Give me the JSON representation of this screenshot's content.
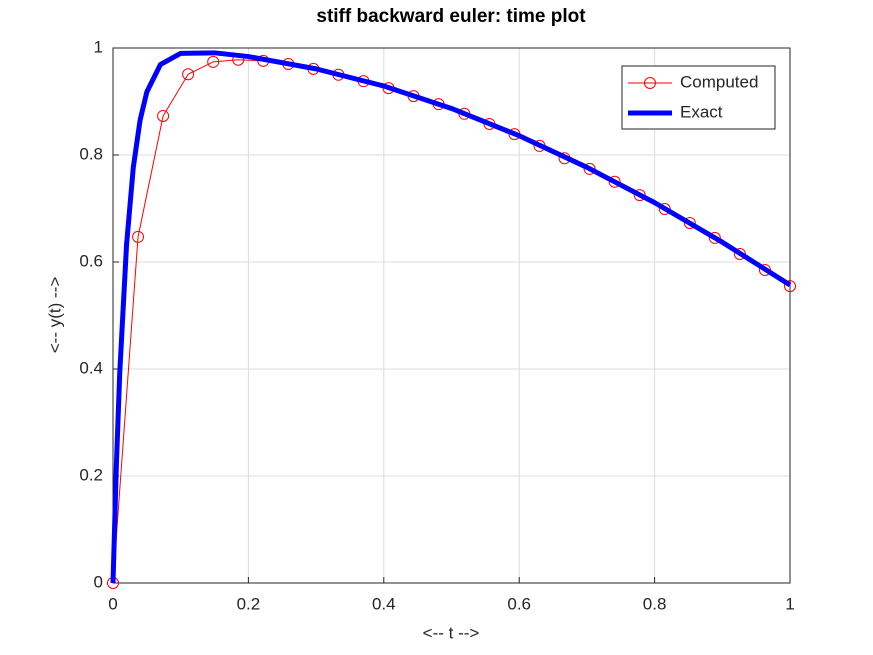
{
  "chart_data": {
    "type": "line",
    "title": "stiff backward euler: time plot",
    "x_label": "<-- t -->",
    "y_label": "<-- y(t) -->",
    "xlim": [
      0,
      1
    ],
    "ylim": [
      0,
      1
    ],
    "xticks": [
      0,
      0.2,
      0.4,
      0.6,
      0.8,
      1
    ],
    "yticks": [
      0,
      0.2,
      0.4,
      0.6,
      0.8,
      1
    ],
    "grid": true,
    "legend_position": "top-right",
    "series": [
      {
        "name": "Computed",
        "color": "#ff0000",
        "marker": "circle",
        "line_width": 1,
        "x": [
          0,
          0.037,
          0.074,
          0.111,
          0.148,
          0.185,
          0.222,
          0.259,
          0.296,
          0.333,
          0.37,
          0.407,
          0.444,
          0.481,
          0.519,
          0.556,
          0.593,
          0.63,
          0.667,
          0.704,
          0.741,
          0.778,
          0.815,
          0.852,
          0.889,
          0.926,
          0.963,
          1
        ],
        "values": [
          0,
          0.647,
          0.873,
          0.951,
          0.974,
          0.978,
          0.976,
          0.97,
          0.961,
          0.95,
          0.938,
          0.925,
          0.91,
          0.895,
          0.877,
          0.858,
          0.839,
          0.817,
          0.794,
          0.774,
          0.75,
          0.725,
          0.699,
          0.673,
          0.645,
          0.615,
          0.585,
          0.555
        ]
      },
      {
        "name": "Exact",
        "color": "#0000ff",
        "marker": "none",
        "line_width": 5,
        "x": [
          0,
          0.005,
          0.01,
          0.02,
          0.03,
          0.04,
          0.05,
          0.07,
          0.1,
          0.15,
          0.2,
          0.3,
          0.4,
          0.5,
          0.6,
          0.7,
          0.8,
          0.9,
          1
        ],
        "values": [
          0,
          0.221,
          0.394,
          0.632,
          0.777,
          0.865,
          0.918,
          0.969,
          0.99,
          0.991,
          0.984,
          0.961,
          0.929,
          0.887,
          0.836,
          0.777,
          0.711,
          0.637,
          0.557
        ]
      }
    ]
  }
}
